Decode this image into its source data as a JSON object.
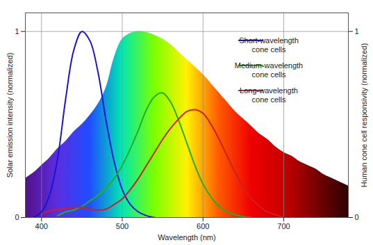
{
  "chart_data": {
    "type": "line",
    "xlabel": "Wavelength (nm)",
    "ylabel": "Solar emission intensity (normalized)",
    "y2label": "Human cone cell responsivity (normalized)",
    "x": [
      380,
      390,
      400,
      410,
      420,
      430,
      440,
      450,
      460,
      470,
      480,
      490,
      500,
      510,
      520,
      530,
      540,
      550,
      560,
      570,
      580,
      590,
      600,
      610,
      620,
      630,
      640,
      650,
      660,
      670,
      680,
      690,
      700,
      710,
      720,
      730,
      740,
      750,
      760,
      770,
      780
    ],
    "series": [
      {
        "type": "area",
        "values": [
          0.21,
          0.24,
          0.28,
          0.32,
          0.37,
          0.41,
          0.46,
          0.5,
          0.55,
          0.61,
          0.7,
          0.86,
          0.96,
          0.99,
          1.0,
          0.995,
          0.98,
          0.96,
          0.93,
          0.89,
          0.85,
          0.81,
          0.77,
          0.72,
          0.67,
          0.62,
          0.57,
          0.53,
          0.49,
          0.45,
          0.42,
          0.38,
          0.35,
          0.33,
          0.3,
          0.28,
          0.26,
          0.23,
          0.21,
          0.19,
          0.17
        ]
      },
      {
        "name": "Short-wavelength cone cells",
        "color": "#1515d8",
        "axis": "y2",
        "values": [
          null,
          0.0,
          0.03,
          0.12,
          0.32,
          0.64,
          0.9,
          1.0,
          0.95,
          0.78,
          0.52,
          0.3,
          0.15,
          0.07,
          0.03,
          0.01,
          0.0,
          null,
          null,
          null,
          null,
          null,
          null,
          null,
          null,
          null,
          null,
          null,
          null,
          null,
          null,
          null,
          null,
          null,
          null,
          null,
          null,
          null,
          null,
          null,
          null
        ]
      },
      {
        "name": "Medium-wavelength cone cells",
        "color": "#21b021",
        "axis": "y2",
        "values": [
          null,
          null,
          null,
          null,
          0.01,
          0.03,
          0.04,
          0.06,
          0.09,
          0.12,
          0.16,
          0.21,
          0.28,
          0.37,
          0.47,
          0.58,
          0.65,
          0.67,
          0.62,
          0.52,
          0.4,
          0.28,
          0.18,
          0.11,
          0.06,
          0.03,
          0.015,
          0.005,
          0.0,
          null,
          null,
          null,
          null,
          null,
          null,
          null,
          null,
          null,
          null,
          null,
          null
        ]
      },
      {
        "name": "Long-wavelength cone cells",
        "color": "#d01f1f",
        "axis": "y2",
        "values": [
          null,
          null,
          0.02,
          0.035,
          0.045,
          0.05,
          0.055,
          0.055,
          0.045,
          0.04,
          0.045,
          0.07,
          0.1,
          0.15,
          0.21,
          0.28,
          0.35,
          0.42,
          0.48,
          0.53,
          0.57,
          0.58,
          0.56,
          0.5,
          0.42,
          0.33,
          0.24,
          0.16,
          0.1,
          0.06,
          0.03,
          0.015,
          0.0,
          null,
          null,
          null,
          null,
          null,
          null,
          null,
          null
        ]
      }
    ],
    "xlim": [
      380,
      780
    ],
    "xticks": [
      400,
      500,
      600,
      700
    ],
    "ylim": [
      0,
      1.1
    ],
    "yticks": [
      0,
      1
    ],
    "y2lim": [
      0,
      1.1
    ],
    "y2ticks": [
      0,
      1
    ],
    "grid": true,
    "legend": "top-right"
  }
}
